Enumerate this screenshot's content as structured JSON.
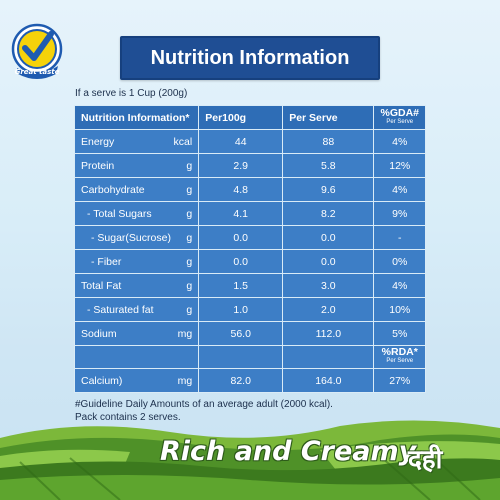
{
  "logo": {
    "text": "Great taste"
  },
  "title": "Nutrition Information",
  "serve_note": "If a serve is 1 Cup (200g)",
  "table": {
    "headers": [
      "Nutrition Information*",
      "Per100g",
      "Per Serve",
      "%GDA#",
      "Per Serve"
    ],
    "rows": [
      {
        "name": "Energy",
        "unit": "kcal",
        "per100": "44",
        "serve": "88",
        "pct": "4%"
      },
      {
        "name": "Protein",
        "unit": "g",
        "per100": "2.9",
        "serve": "5.8",
        "pct": "12%"
      },
      {
        "name": "Carbohydrate",
        "unit": "g",
        "per100": "4.8",
        "serve": "9.6",
        "pct": "4%"
      },
      {
        "name": "- Total Sugars",
        "unit": "g",
        "per100": "4.1",
        "serve": "8.2",
        "pct": "9%"
      },
      {
        "name": "- Sugar(Sucrose)",
        "unit": "g",
        "per100": "0.0",
        "serve": "0.0",
        "pct": "-"
      },
      {
        "name": "- Fiber",
        "unit": "g",
        "per100": "0.0",
        "serve": "0.0",
        "pct": "0%"
      },
      {
        "name": "Total Fat",
        "unit": "g",
        "per100": "1.5",
        "serve": "3.0",
        "pct": "4%"
      },
      {
        "name": "- Saturated fat",
        "unit": "g",
        "per100": "1.0",
        "serve": "2.0",
        "pct": "10%"
      },
      {
        "name": "Sodium",
        "unit": "mg",
        "per100": "56.0",
        "serve": "112.0",
        "pct": "5%"
      }
    ],
    "rda_header": "%RDA*",
    "rda_sub": "Per Serve",
    "calcium": {
      "name": "Calcium)",
      "unit": "mg",
      "per100": "82.0",
      "serve": "164.0",
      "pct": "27%"
    }
  },
  "footnote_1": "#Guideline Daily Amounts of an average adult (2000 kcal).",
  "footnote_2": "Pack contains 2 serves.",
  "banner": "Rich and Creamy",
  "hindi": "दही",
  "colors": {
    "title_bg": "#1f4e94",
    "table_bg": "#3d7ec6",
    "field_green": "#5a9a2a",
    "logo_yellow": "#f5d20a"
  }
}
